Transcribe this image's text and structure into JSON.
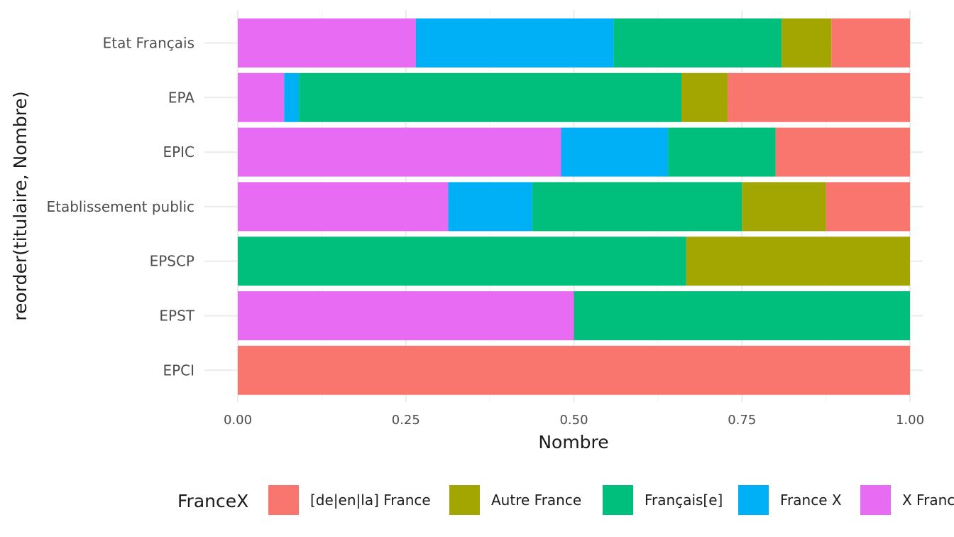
{
  "chart_data": {
    "type": "bar",
    "orientation": "horizontal",
    "stacked": "fill",
    "xlabel": "Nombre",
    "ylabel": "reorder(titulaire, Nombre)",
    "xlim": [
      0,
      1
    ],
    "x_ticks": [
      "0.00",
      "0.25",
      "0.50",
      "0.75",
      "1.00"
    ],
    "grid": true,
    "legend_position": "bottom",
    "legend_title": "FranceX",
    "categories": [
      "Etat Français",
      "EPA",
      "EPIC",
      "Etablissement public",
      "EPSCP",
      "EPST",
      "EPCI"
    ],
    "series": [
      {
        "name": "X France",
        "color": "#E76BF3",
        "values": [
          0.265,
          0.069,
          0.481,
          0.313,
          0.0,
          0.5,
          0.0
        ]
      },
      {
        "name": "France X",
        "color": "#00B0F6",
        "values": [
          0.294,
          0.022,
          0.159,
          0.125,
          0.0,
          0.0,
          0.0
        ]
      },
      {
        "name": "Français[e]",
        "color": "#00BF7D",
        "values": [
          0.25,
          0.569,
          0.16,
          0.312,
          0.667,
          0.5,
          0.0
        ]
      },
      {
        "name": "Autre France",
        "color": "#A3A500",
        "values": [
          0.074,
          0.069,
          0.0,
          0.125,
          0.333,
          0.0,
          0.0
        ]
      },
      {
        "name": "[de|en|la] France",
        "color": "#F8766D",
        "values": [
          0.117,
          0.271,
          0.2,
          0.125,
          0.0,
          0.0,
          1.0
        ]
      }
    ],
    "legend_order": [
      "[de|en|la] France",
      "Autre France",
      "Français[e]",
      "France X",
      "X France"
    ]
  }
}
